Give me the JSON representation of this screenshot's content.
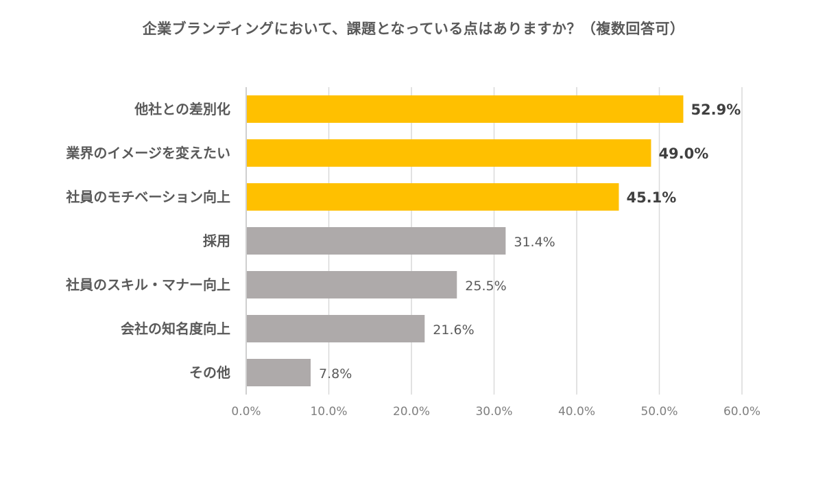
{
  "chart_data": {
    "type": "bar",
    "orientation": "horizontal",
    "title": "企業ブランディングにおいて、課題となっている点はありますか？（複数回答可）",
    "categories": [
      "他社との差別化",
      "業界のイメージを変えたい",
      "社員のモチベーション向上",
      "採用",
      "社員のスキル・マナー向上",
      "会社の知名度向上",
      "その他"
    ],
    "values": [
      52.9,
      49.0,
      45.1,
      31.4,
      25.5,
      21.6,
      7.8
    ],
    "value_labels": [
      "52.9%",
      "49.0%",
      "45.1%",
      "31.4%",
      "25.5%",
      "21.6%",
      "7.8%"
    ],
    "highlight": [
      true,
      true,
      true,
      false,
      false,
      false,
      false
    ],
    "xlim": [
      0,
      60
    ],
    "x_ticks": [
      0,
      10,
      20,
      30,
      40,
      50,
      60
    ],
    "x_tick_labels": [
      "0.0%",
      "10.0%",
      "20.0%",
      "30.0%",
      "40.0%",
      "50.0%",
      "60.0%"
    ],
    "xlabel": "",
    "ylabel": "",
    "grid": true,
    "legend": "none",
    "colors": {
      "highlight": "#FFC000",
      "normal": "#AEAAAA",
      "grid": "#D9D9D9",
      "axis": "#BFBFBF",
      "label": "#595959",
      "value_highlight": "#404040",
      "value_normal": "#595959",
      "tick": "#7F7F7F"
    }
  }
}
